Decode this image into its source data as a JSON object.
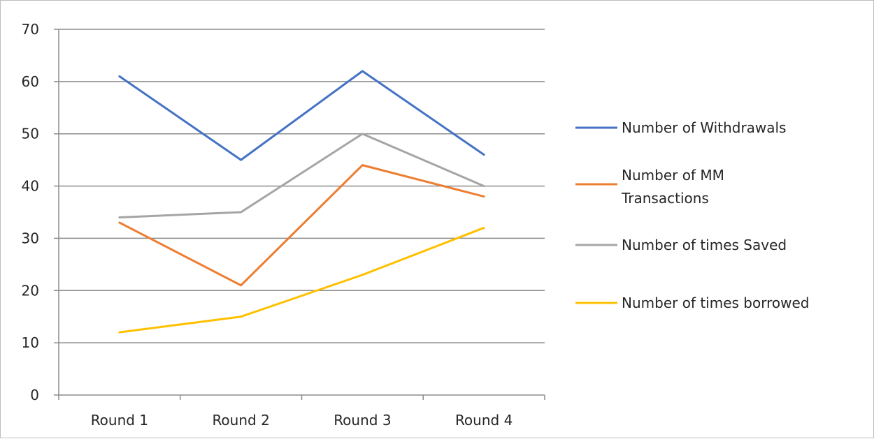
{
  "chart_data": {
    "type": "line",
    "title": "",
    "xlabel": "",
    "ylabel": "",
    "categories": [
      "Round 1",
      "Round 2",
      "Round 3",
      "Round 4"
    ],
    "ylim": [
      0,
      70
    ],
    "yticks": [
      0,
      10,
      20,
      30,
      40,
      50,
      60,
      70
    ],
    "grid": true,
    "legend_position": "right",
    "series": [
      {
        "name": "Number of Withdrawals",
        "color": "#4472C4",
        "values": [
          61,
          45,
          62,
          46
        ]
      },
      {
        "name": "Number of MM Transactions",
        "color": "#ED7D31",
        "values": [
          33,
          21,
          44,
          38
        ]
      },
      {
        "name": "Number of times Saved",
        "color": "#A5A5A5",
        "values": [
          34,
          35,
          50,
          40
        ]
      },
      {
        "name": "Number of times borrowed",
        "color": "#FFC000",
        "values": [
          12,
          15,
          23,
          32
        ]
      }
    ]
  }
}
